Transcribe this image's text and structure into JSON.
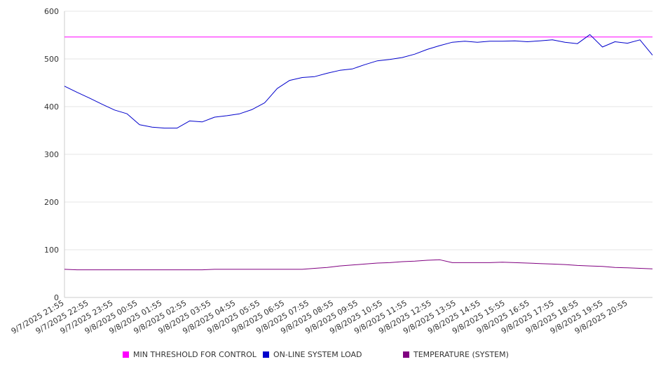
{
  "chart_data": {
    "type": "line",
    "title": "",
    "xlabel": "",
    "ylabel": "",
    "ylim": [
      0,
      600
    ],
    "yticks": [
      "0",
      "100",
      "200",
      "300",
      "400",
      "500",
      "600"
    ],
    "grid": true,
    "legend_position": "bottom",
    "x_ticks": [
      "9/7/2025 21:55",
      "9/7/2025 22:55",
      "9/7/2025 23:55",
      "9/8/2025 00:55",
      "9/8/2025 01:55",
      "9/8/2025 02:55",
      "9/8/2025 03:55",
      "9/8/2025 04:55",
      "9/8/2025 05:55",
      "9/8/2025 06:55",
      "9/8/2025 07:55",
      "9/8/2025 08:55",
      "9/8/2025 09:55",
      "9/8/2025 10:55",
      "9/8/2025 11:55",
      "9/8/2025 12:55",
      "9/8/2025 13:55",
      "9/8/2025 14:55",
      "9/8/2025 15:55",
      "9/8/2025 16:55",
      "9/8/2025 17:55",
      "9/8/2025 18:55",
      "9/8/2025 19:55",
      "9/8/2025 20:55"
    ],
    "x": [
      "9/7/2025 21:55",
      "9/7/2025 22:25",
      "9/7/2025 22:55",
      "9/7/2025 23:25",
      "9/7/2025 23:55",
      "9/8/2025 00:25",
      "9/8/2025 00:55",
      "9/8/2025 01:25",
      "9/8/2025 01:55",
      "9/8/2025 02:25",
      "9/8/2025 02:55",
      "9/8/2025 03:25",
      "9/8/2025 03:55",
      "9/8/2025 04:25",
      "9/8/2025 04:55",
      "9/8/2025 05:25",
      "9/8/2025 05:55",
      "9/8/2025 06:25",
      "9/8/2025 06:55",
      "9/8/2025 07:25",
      "9/8/2025 07:55",
      "9/8/2025 08:25",
      "9/8/2025 08:55",
      "9/8/2025 09:25",
      "9/8/2025 09:55",
      "9/8/2025 10:25",
      "9/8/2025 10:55",
      "9/8/2025 11:25",
      "9/8/2025 11:55",
      "9/8/2025 12:25",
      "9/8/2025 12:55",
      "9/8/2025 13:25",
      "9/8/2025 13:55",
      "9/8/2025 14:25",
      "9/8/2025 14:55",
      "9/8/2025 15:25",
      "9/8/2025 15:55",
      "9/8/2025 16:25",
      "9/8/2025 16:55",
      "9/8/2025 17:25",
      "9/8/2025 17:55",
      "9/8/2025 18:25",
      "9/8/2025 18:55",
      "9/8/2025 19:25",
      "9/8/2025 19:55",
      "9/8/2025 20:25",
      "9/8/2025 20:55",
      "9/8/2025 21:25"
    ],
    "series": [
      {
        "name": "MIN THRESHOLD FOR CONTROL",
        "color": "#ff00ff",
        "values": [
          546,
          546,
          546,
          546,
          546,
          546,
          546,
          546,
          546,
          546,
          546,
          546,
          546,
          546,
          546,
          546,
          546,
          546,
          546,
          546,
          546,
          546,
          546,
          546,
          546,
          546,
          546,
          546,
          546,
          546,
          546,
          546,
          546,
          546,
          546,
          546,
          546,
          546,
          546,
          546,
          546,
          546,
          546,
          546,
          546,
          546,
          546,
          546
        ]
      },
      {
        "name": "ON-LINE SYSTEM LOAD",
        "color": "#0000cc",
        "values": [
          443,
          430,
          418,
          405,
          393,
          385,
          362,
          357,
          355,
          355,
          370,
          368,
          378,
          381,
          385,
          394,
          408,
          438,
          455,
          461,
          463,
          470,
          476,
          479,
          488,
          496,
          499,
          503,
          510,
          520,
          528,
          535,
          537,
          535,
          537,
          537,
          538,
          536,
          538,
          540,
          535,
          532,
          551,
          525,
          536,
          533,
          540,
          508
        ]
      },
      {
        "name": "TEMPERATURE (SYSTEM)",
        "color": "#800080",
        "values": [
          59,
          58,
          58,
          58,
          58,
          58,
          58,
          58,
          58,
          58,
          58,
          58,
          59,
          59,
          59,
          59,
          59,
          59,
          59,
          59,
          61,
          63,
          66,
          68,
          70,
          72,
          73,
          75,
          76,
          78,
          79,
          73,
          73,
          73,
          73,
          74,
          73,
          72,
          71,
          70,
          69,
          67,
          66,
          65,
          63,
          62,
          61,
          60
        ]
      }
    ]
  }
}
